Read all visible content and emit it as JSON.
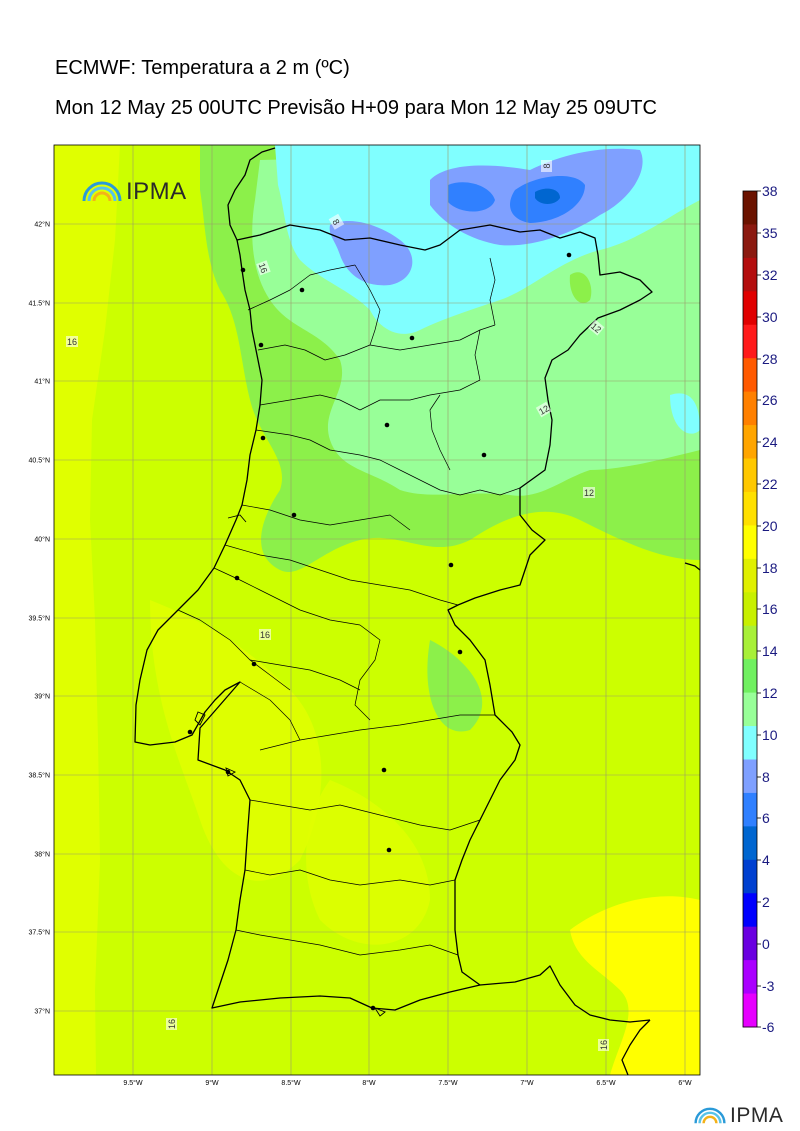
{
  "title": "ECMWF: Temperatura a 2 m (ºC)",
  "subtitle": "Mon 12 May 25 00UTC Previsão H+09 para Mon 12 May 25 09UTC",
  "logo_text": "IPMA",
  "lat_labels": [
    "42°N",
    "41.5°N",
    "41°N",
    "40.5°N",
    "40°N",
    "39.5°N",
    "39°N",
    "38.5°N",
    "38°N",
    "37.5°N",
    "37°N"
  ],
  "lon_labels": [
    "9.5°W",
    "9°W",
    "8.5°W",
    "8°W",
    "7.5°W",
    "7°W",
    "6.5°W",
    "6°W"
  ],
  "contour_labels": [
    "8",
    "8",
    "16",
    "12",
    "12",
    "12",
    "16",
    "16",
    "16",
    "16",
    "12"
  ],
  "colorbar": {
    "ticks": [
      "38",
      "35",
      "32",
      "30",
      "28",
      "26",
      "24",
      "22",
      "20",
      "18",
      "16",
      "14",
      "12",
      "10",
      "8",
      "6",
      "4",
      "2",
      "0",
      "-3",
      "-6"
    ],
    "colors": [
      "#6b1300",
      "#8b1a10",
      "#b30e0e",
      "#e00000",
      "#ff1a1a",
      "#ff5a00",
      "#ff8000",
      "#ffa500",
      "#ffc800",
      "#ffe000",
      "#ffff00",
      "#e0f000",
      "#c8f000",
      "#a8f038",
      "#70f060",
      "#98ff98",
      "#80ffff",
      "#7fa0ff",
      "#3080ff",
      "#0066d0",
      "#0040d0",
      "#0000ff",
      "#6a00e0",
      "#aa00ff",
      "#e600ff"
    ]
  },
  "legend_units": "ºC",
  "cities": 18
}
